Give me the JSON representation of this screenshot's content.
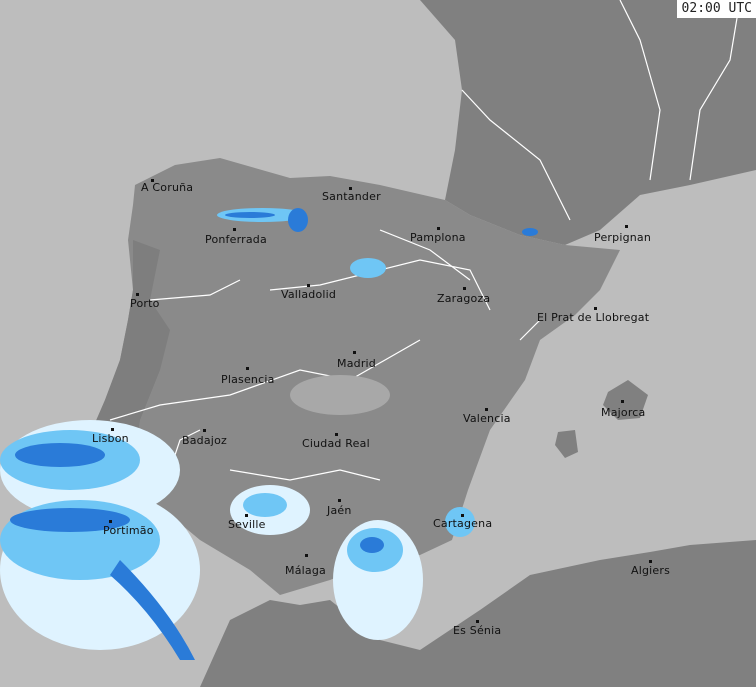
{
  "timestamp": "02:00 UTC",
  "colors": {
    "sea": "#bdbdbd",
    "land": "#808080",
    "iberia": "#8a8a8a",
    "border": "#ffffff",
    "precip_light": "#dff3ff",
    "precip_mid": "#6fc6f5",
    "precip_heavy": "#2a7bd8"
  },
  "cities": [
    {
      "name": "A Coruña"
    },
    {
      "name": "Santander"
    },
    {
      "name": "Ponferrada"
    },
    {
      "name": "Pamplona"
    },
    {
      "name": "Perpignan"
    },
    {
      "name": "Porto"
    },
    {
      "name": "Valladolid"
    },
    {
      "name": "Zaragoza"
    },
    {
      "name": "El Prat de Llobregat"
    },
    {
      "name": "Madrid"
    },
    {
      "name": "Plasencia"
    },
    {
      "name": "Majorca"
    },
    {
      "name": "Valencia"
    },
    {
      "name": "Lisbon"
    },
    {
      "name": "Badajoz"
    },
    {
      "name": "Ciudad Real"
    },
    {
      "name": "Jaén"
    },
    {
      "name": "Seville"
    },
    {
      "name": "Portimão"
    },
    {
      "name": "Cartagena"
    },
    {
      "name": "Málaga"
    },
    {
      "name": "Algiers"
    },
    {
      "name": "Es Sénia"
    }
  ]
}
